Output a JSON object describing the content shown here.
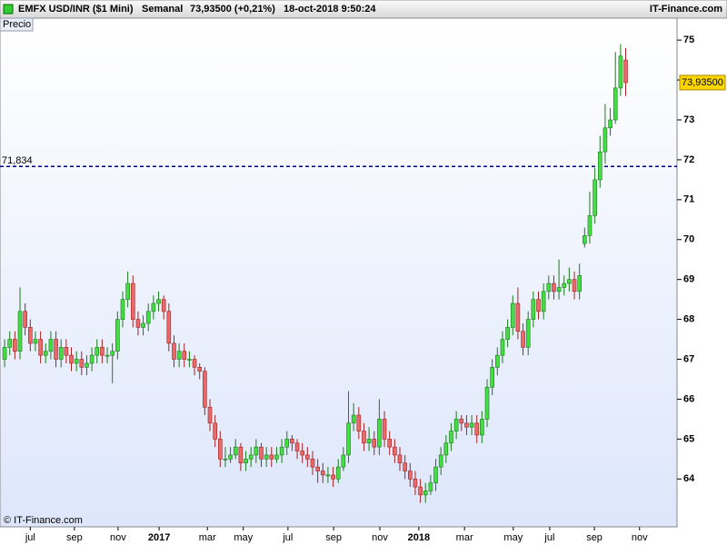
{
  "header": {
    "title": "EMFX USD/INR ($1 Mini)",
    "period": "Semanal",
    "price": "73,93500 (+0,21%)",
    "datetime": "18-oct-2018 9:50:24",
    "source": "IT-Finance.com"
  },
  "chart_data": {
    "type": "candlestick",
    "y_label": "Precio",
    "watermark": "© IT-Finance.com",
    "up_color": "#44dd44",
    "down_color": "#e86a6a",
    "xlim": [
      -0.9,
      131
    ],
    "ylim": [
      62.8,
      75.55
    ],
    "yticks": [
      64,
      65,
      66,
      67,
      68,
      69,
      70,
      71,
      72,
      73,
      74,
      75
    ],
    "xticks": [
      {
        "value": 5,
        "label": "jul"
      },
      {
        "value": 13.6,
        "label": "sep"
      },
      {
        "value": 22.1,
        "label": "nov"
      },
      {
        "value": 30.1,
        "label": "2017"
      },
      {
        "value": 39.5,
        "label": "mar"
      },
      {
        "value": 46.5,
        "label": "may"
      },
      {
        "value": 55.2,
        "label": "jul"
      },
      {
        "value": 64.1,
        "label": "sep"
      },
      {
        "value": 73.1,
        "label": "nov"
      },
      {
        "value": 80.7,
        "label": "2018"
      },
      {
        "value": 89.6,
        "label": "mar"
      },
      {
        "value": 99.1,
        "label": "may"
      },
      {
        "value": 106.2,
        "label": "jul"
      },
      {
        "value": 114.9,
        "label": "sep"
      },
      {
        "value": 123.7,
        "label": "nov"
      }
    ],
    "hline": {
      "value": 71.834,
      "label": "71,834",
      "color": "#000080"
    },
    "last_price": {
      "value": 73.935,
      "label": "73,93500",
      "color": "#ffd700"
    },
    "ohlc": [
      [
        67.0,
        67.5,
        66.8,
        67.3
      ],
      [
        67.3,
        67.7,
        67.1,
        67.5
      ],
      [
        67.5,
        67.7,
        67.0,
        67.2
      ],
      [
        67.2,
        68.8,
        67.0,
        68.2
      ],
      [
        68.2,
        68.4,
        67.6,
        67.8
      ],
      [
        67.8,
        68.0,
        67.2,
        67.4
      ],
      [
        67.4,
        67.7,
        67.2,
        67.5
      ],
      [
        67.5,
        67.7,
        66.9,
        67.1
      ],
      [
        67.1,
        67.4,
        66.9,
        67.2
      ],
      [
        67.2,
        67.7,
        67.0,
        67.5
      ],
      [
        67.5,
        67.7,
        66.8,
        67.0
      ],
      [
        67.0,
        67.5,
        66.8,
        67.3
      ],
      [
        67.3,
        67.5,
        66.9,
        67.1
      ],
      [
        67.1,
        67.3,
        66.7,
        66.9
      ],
      [
        66.9,
        67.2,
        66.7,
        67.0
      ],
      [
        67.0,
        67.2,
        66.6,
        66.8
      ],
      [
        66.8,
        67.1,
        66.6,
        66.9
      ],
      [
        66.9,
        67.3,
        66.7,
        67.1
      ],
      [
        67.1,
        67.5,
        66.9,
        67.3
      ],
      [
        67.3,
        67.5,
        66.9,
        67.1
      ],
      [
        67.1,
        67.3,
        66.9,
        67.1
      ],
      [
        67.1,
        67.4,
        66.4,
        67.2
      ],
      [
        67.2,
        68.2,
        67.0,
        68.0
      ],
      [
        68.0,
        68.7,
        67.8,
        68.5
      ],
      [
        68.5,
        69.2,
        68.3,
        68.9
      ],
      [
        68.9,
        69.1,
        67.8,
        68.0
      ],
      [
        68.0,
        68.2,
        67.6,
        67.8
      ],
      [
        67.8,
        68.1,
        67.6,
        67.9
      ],
      [
        67.9,
        68.4,
        67.7,
        68.2
      ],
      [
        68.2,
        68.6,
        68.0,
        68.4
      ],
      [
        68.4,
        68.7,
        68.2,
        68.5
      ],
      [
        68.5,
        68.6,
        68.0,
        68.2
      ],
      [
        68.2,
        68.4,
        67.2,
        67.4
      ],
      [
        67.4,
        67.6,
        66.8,
        67.0
      ],
      [
        67.0,
        67.4,
        66.8,
        67.2
      ],
      [
        67.2,
        67.4,
        66.8,
        67.0
      ],
      [
        67.0,
        67.2,
        66.8,
        67.0
      ],
      [
        67.0,
        67.1,
        66.6,
        66.8
      ],
      [
        66.8,
        66.9,
        66.5,
        66.7
      ],
      [
        66.7,
        66.8,
        65.6,
        65.8
      ],
      [
        65.8,
        66.0,
        65.2,
        65.4
      ],
      [
        65.4,
        65.6,
        64.8,
        65.0
      ],
      [
        65.0,
        65.2,
        64.3,
        64.5
      ],
      [
        64.5,
        64.8,
        64.3,
        64.5
      ],
      [
        64.5,
        64.8,
        64.4,
        64.6
      ],
      [
        64.6,
        65.0,
        64.5,
        64.8
      ],
      [
        64.8,
        64.9,
        64.2,
        64.4
      ],
      [
        64.4,
        64.7,
        64.2,
        64.5
      ],
      [
        64.5,
        64.8,
        64.3,
        64.6
      ],
      [
        64.6,
        65.0,
        64.4,
        64.8
      ],
      [
        64.8,
        64.9,
        64.3,
        64.5
      ],
      [
        64.5,
        64.8,
        64.3,
        64.6
      ],
      [
        64.6,
        64.8,
        64.3,
        64.5
      ],
      [
        64.5,
        64.8,
        64.4,
        64.6
      ],
      [
        64.6,
        65.0,
        64.4,
        64.8
      ],
      [
        64.8,
        65.2,
        64.6,
        65.0
      ],
      [
        65.0,
        65.1,
        64.7,
        64.9
      ],
      [
        64.9,
        65.0,
        64.5,
        64.7
      ],
      [
        64.7,
        64.9,
        64.4,
        64.6
      ],
      [
        64.6,
        64.8,
        64.3,
        64.5
      ],
      [
        64.5,
        64.7,
        64.1,
        64.3
      ],
      [
        64.3,
        64.5,
        63.9,
        64.2
      ],
      [
        64.2,
        64.4,
        63.9,
        64.1
      ],
      [
        64.1,
        64.3,
        63.9,
        64.1
      ],
      [
        64.1,
        64.3,
        63.8,
        64.0
      ],
      [
        64.0,
        64.5,
        63.9,
        64.3
      ],
      [
        64.3,
        64.8,
        64.2,
        64.6
      ],
      [
        64.6,
        66.2,
        64.4,
        65.4
      ],
      [
        65.4,
        65.9,
        65.2,
        65.6
      ],
      [
        65.6,
        65.8,
        65.0,
        65.2
      ],
      [
        65.2,
        65.4,
        64.7,
        64.9
      ],
      [
        64.9,
        65.3,
        64.7,
        65.0
      ],
      [
        65.0,
        65.2,
        64.6,
        64.8
      ],
      [
        64.8,
        66.0,
        64.6,
        65.5
      ],
      [
        65.5,
        65.7,
        64.8,
        65.0
      ],
      [
        65.0,
        65.2,
        64.6,
        64.8
      ],
      [
        64.8,
        65.0,
        64.4,
        64.6
      ],
      [
        64.6,
        64.8,
        64.2,
        64.4
      ],
      [
        64.4,
        64.6,
        64.0,
        64.2
      ],
      [
        64.2,
        64.4,
        63.8,
        64.0
      ],
      [
        64.0,
        64.2,
        63.6,
        63.8
      ],
      [
        63.8,
        64.0,
        63.4,
        63.6
      ],
      [
        63.6,
        63.9,
        63.4,
        63.7
      ],
      [
        63.7,
        64.1,
        63.6,
        63.9
      ],
      [
        63.9,
        64.5,
        63.7,
        64.3
      ],
      [
        64.3,
        64.8,
        64.1,
        64.6
      ],
      [
        64.6,
        65.1,
        64.4,
        64.9
      ],
      [
        64.9,
        65.4,
        64.7,
        65.2
      ],
      [
        65.2,
        65.7,
        65.0,
        65.5
      ],
      [
        65.5,
        65.6,
        65.2,
        65.4
      ],
      [
        65.4,
        65.6,
        65.1,
        65.3
      ],
      [
        65.3,
        65.6,
        65.1,
        65.4
      ],
      [
        65.4,
        65.6,
        64.9,
        65.1
      ],
      [
        65.1,
        65.7,
        64.9,
        65.5
      ],
      [
        65.5,
        66.5,
        65.3,
        66.3
      ],
      [
        66.3,
        67.0,
        66.1,
        66.8
      ],
      [
        66.8,
        67.3,
        66.6,
        67.1
      ],
      [
        67.1,
        67.7,
        66.9,
        67.5
      ],
      [
        67.5,
        68.0,
        67.3,
        67.8
      ],
      [
        67.8,
        68.6,
        67.6,
        68.4
      ],
      [
        68.4,
        68.8,
        67.5,
        67.7
      ],
      [
        67.7,
        67.9,
        67.1,
        67.3
      ],
      [
        67.3,
        68.2,
        67.1,
        68.0
      ],
      [
        68.0,
        68.7,
        67.8,
        68.5
      ],
      [
        68.5,
        68.7,
        68.0,
        68.2
      ],
      [
        68.2,
        68.9,
        68.0,
        68.7
      ],
      [
        68.7,
        69.1,
        68.5,
        68.9
      ],
      [
        68.9,
        69.1,
        68.5,
        68.7
      ],
      [
        68.7,
        69.5,
        68.5,
        68.8
      ],
      [
        68.8,
        69.1,
        68.6,
        68.9
      ],
      [
        68.9,
        69.3,
        68.7,
        69.0
      ],
      [
        69.0,
        69.2,
        68.5,
        68.7
      ],
      [
        68.7,
        69.4,
        68.5,
        69.1
      ],
      [
        69.9,
        70.3,
        69.8,
        70.1
      ],
      [
        70.1,
        71.2,
        69.9,
        70.6
      ],
      [
        70.6,
        71.8,
        70.4,
        71.5
      ],
      [
        71.5,
        72.6,
        71.3,
        72.2
      ],
      [
        72.2,
        73.4,
        71.9,
        72.8
      ],
      [
        72.8,
        73.3,
        72.6,
        73.0
      ],
      [
        73.0,
        74.7,
        72.9,
        73.8
      ],
      [
        73.8,
        74.9,
        73.6,
        74.6
      ],
      [
        74.5,
        74.8,
        73.6,
        73.935
      ]
    ]
  }
}
